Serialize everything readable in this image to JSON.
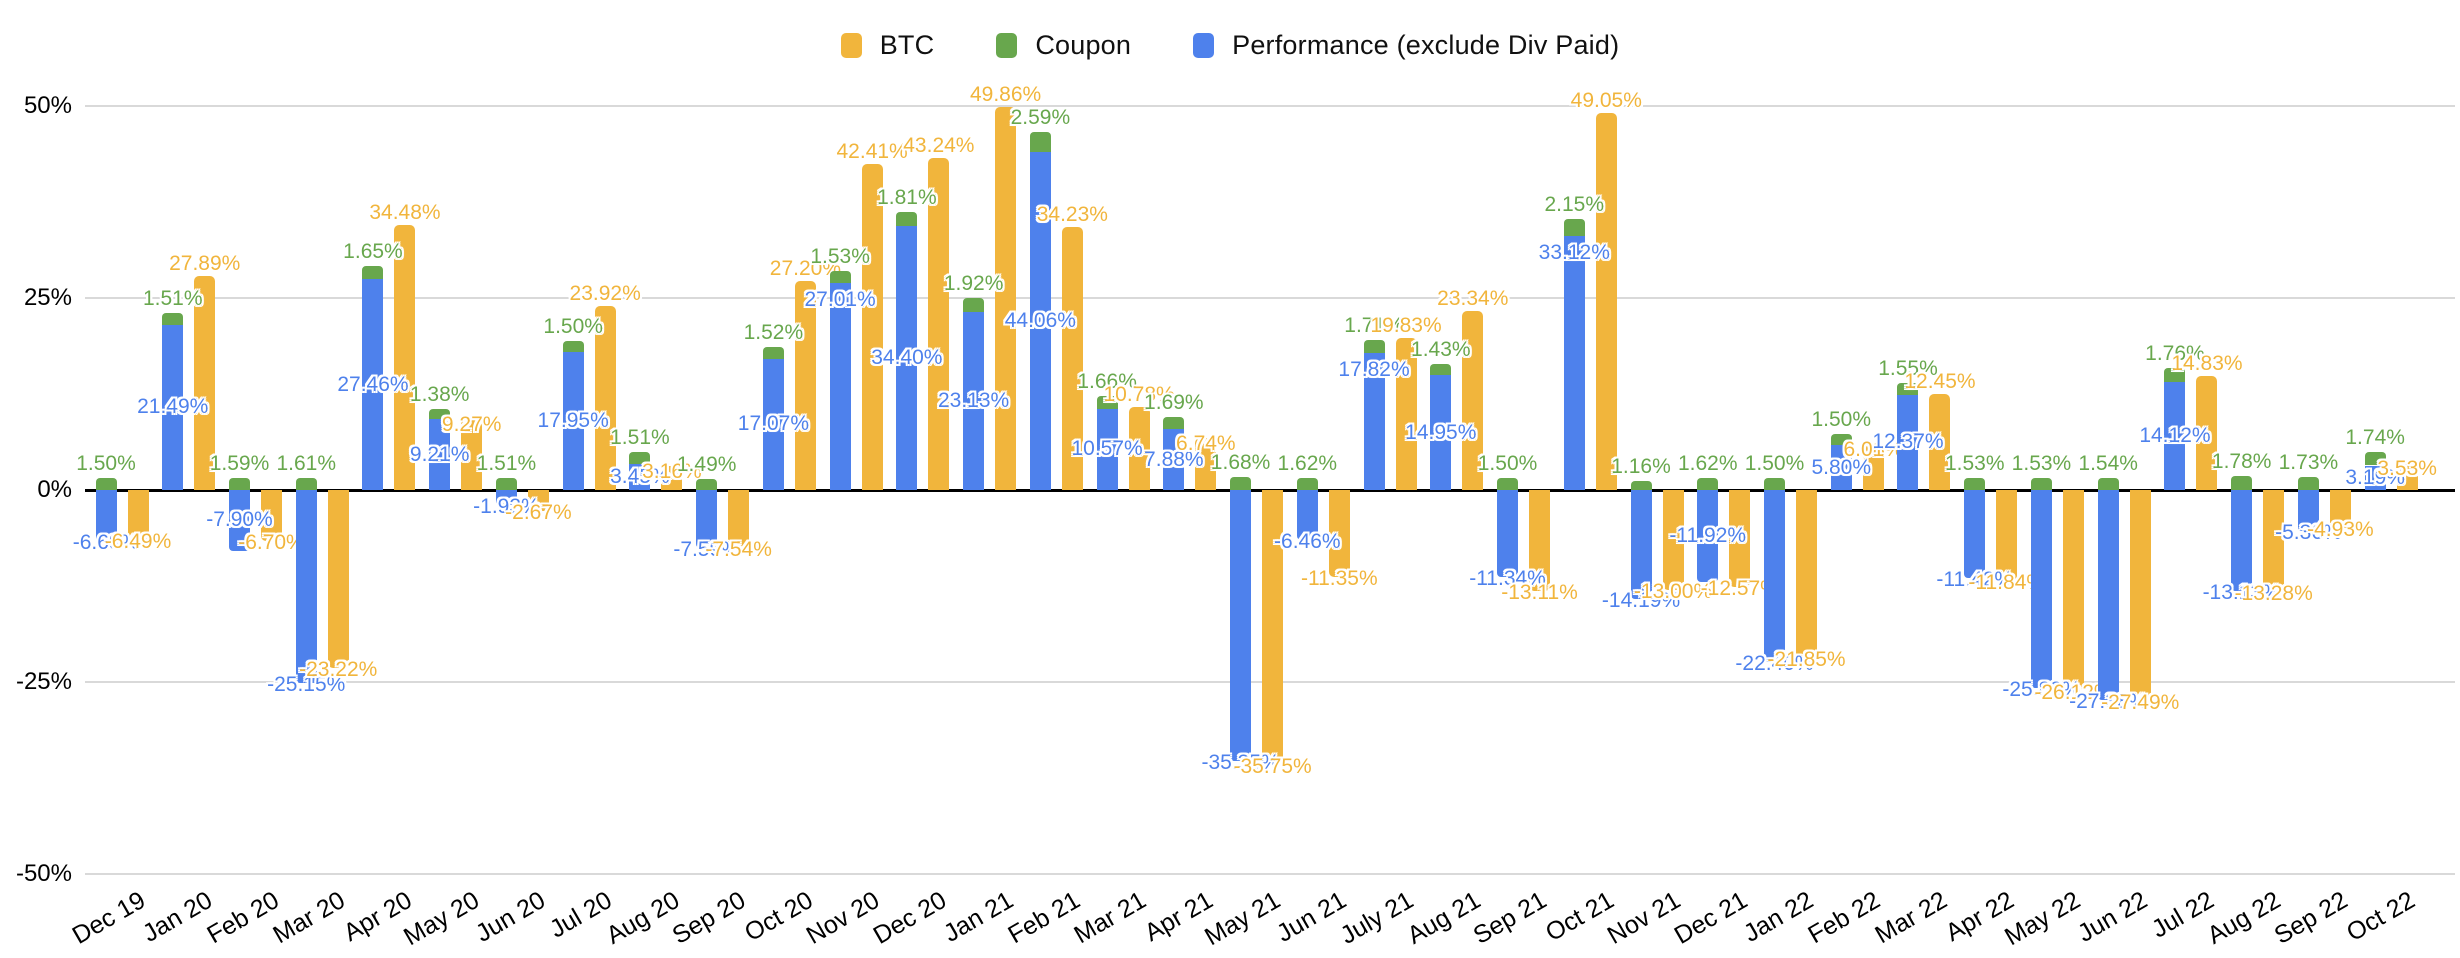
{
  "legend": [
    {
      "label": "BTC",
      "color": "#F1B53C"
    },
    {
      "label": "Coupon",
      "color": "#68A74D"
    },
    {
      "label": "Performance (exclude Div Paid)",
      "color": "#4E81EC"
    }
  ],
  "y_axis": {
    "ticks": [
      "50%",
      "25%",
      "0%",
      "-25%",
      "-50%"
    ],
    "values": [
      50,
      25,
      0,
      -25,
      -50
    ]
  },
  "chart_data": {
    "type": "bar",
    "title": "",
    "xlabel": "",
    "ylabel": "",
    "ylim": [
      -50,
      50
    ],
    "grid": true,
    "legend_position": "top",
    "label_format": "0.00%",
    "structure": "Performance and Coupon are stacked in the left column of each pair; BTC is the separate right column",
    "categories": [
      "Dec 19",
      "Jan 20",
      "Feb 20",
      "Mar 20",
      "Apr 20",
      "May 20",
      "Jun 20",
      "Jul 20",
      "Aug 20",
      "Sep 20",
      "Oct 20",
      "Nov 20",
      "Dec 20",
      "Jan 21",
      "Feb 21",
      "Mar 21",
      "Apr 21",
      "May 21",
      "Jun 21",
      "July 21",
      "Aug 21",
      "Sep 21",
      "Oct 21",
      "Nov 21",
      "Dec 21",
      "Jan 22",
      "Feb 22",
      "Mar 22",
      "Apr 22",
      "May 22",
      "Jun 22",
      "Jul 22",
      "Aug 22",
      "Sep 22",
      "Oct 22"
    ],
    "series": [
      {
        "name": "BTC",
        "color": "#F1B53C",
        "values": [
          -6.49,
          27.89,
          -6.7,
          -23.22,
          34.48,
          9.27,
          -2.67,
          23.92,
          3.16,
          -7.54,
          27.2,
          42.41,
          43.24,
          49.86,
          34.23,
          10.78,
          6.74,
          -35.75,
          -11.35,
          19.83,
          23.34,
          -13.11,
          49.05,
          -13.0,
          -12.57,
          -21.85,
          6.01,
          12.45,
          -11.84,
          -26.12,
          -27.49,
          14.83,
          -13.28,
          -4.93,
          3.53
        ]
      },
      {
        "name": "Coupon",
        "color": "#68A74D",
        "values": [
          1.5,
          1.51,
          1.59,
          1.61,
          1.65,
          1.38,
          1.51,
          1.5,
          1.51,
          1.49,
          1.52,
          1.53,
          1.81,
          1.92,
          2.59,
          1.66,
          1.69,
          1.68,
          1.62,
          1.71,
          1.43,
          1.5,
          2.15,
          1.16,
          1.62,
          1.5,
          1.5,
          1.55,
          1.53,
          1.53,
          1.54,
          1.76,
          1.78,
          1.73,
          1.74
        ]
      },
      {
        "name": "Performance (exclude Div Paid)",
        "color": "#4E81EC",
        "values": [
          -6.69,
          21.49,
          -7.9,
          -25.15,
          27.46,
          9.21,
          -1.93,
          17.95,
          3.45,
          -7.59,
          17.07,
          27.01,
          34.4,
          23.13,
          44.06,
          10.57,
          7.88,
          -35.35,
          -6.46,
          17.82,
          14.95,
          -11.34,
          33.12,
          -14.19,
          -11.92,
          -22.4,
          5.8,
          12.37,
          -11.42,
          -25.83,
          -27.38,
          14.12,
          -13.13,
          -5.36,
          3.19
        ]
      }
    ],
    "perf_label_pos_overrides": {
      "Nov 20": "top",
      "July 21": "top",
      "Oct 21": "top",
      "Feb 20": "center",
      "Dec 21": "center"
    }
  }
}
